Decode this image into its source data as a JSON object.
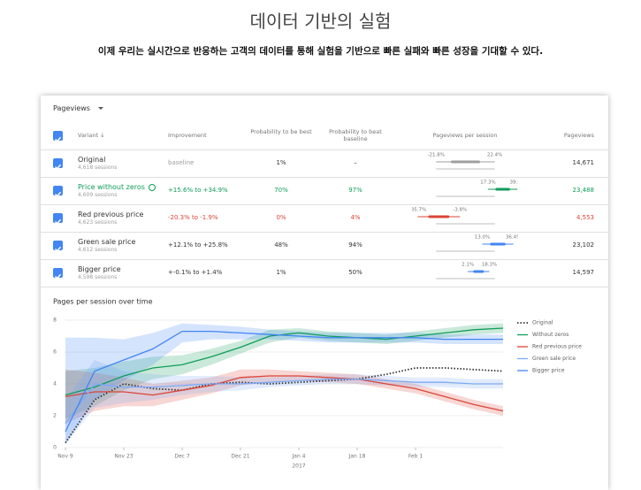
{
  "header": {
    "title": "데이터 기반의 실험",
    "subtitle": "이제 우리는 실시간으로 반응하는 고객의 데이터를 통해 실험을 기반으로 빠른 실패와 빠른 성장을 기대할 수 있다."
  },
  "report": {
    "metric": "Pageviews",
    "columns": [
      "Variant ↓",
      "Improvement",
      "Probability to be best",
      "Probability to beat baseline",
      "Pageviews per session",
      "Pageviews"
    ],
    "rows": [
      {
        "variant": "Original",
        "sessions": "4,618 sessions",
        "improvement": "baseline",
        "prob_best": "1%",
        "prob_beat": "–",
        "range": {
          "low": {
            "value": -21.8,
            "label": "-21.8%"
          },
          "high": {
            "value": 22.4,
            "label": "22.4%"
          }
        },
        "pageviews": "14,671",
        "text_color": "#333333",
        "bar_color": "#9e9e9e"
      },
      {
        "variant": "Price without zeros",
        "sessions": "4,609 sessions",
        "improvement": "+15.6% to +34.9%",
        "prob_best": "70%",
        "prob_beat": "97%",
        "range": {
          "low": {
            "value": 17.3,
            "label": "17.3%"
          },
          "high": {
            "value": 39.5,
            "label": "39.5%"
          }
        },
        "pageviews": "23,488",
        "text_color": "#0f9d58",
        "bar_color": "#0f9d58",
        "leader": true
      },
      {
        "variant": "Red previous price",
        "sessions": "4,623 sessions",
        "improvement": "-20.3% to -1.9%",
        "prob_best": "0%",
        "prob_beat": "4%",
        "range": {
          "low": {
            "value": -35.7,
            "label": "-35.7%"
          },
          "high": {
            "value": -3.8,
            "label": "-3.8%"
          }
        },
        "pageviews": "4,553",
        "text_color": "#db4437",
        "bar_color": "#db4437"
      },
      {
        "variant": "Green sale price",
        "sessions": "4,612 sessions",
        "improvement": "+12.1% to +25.8%",
        "prob_best": "48%",
        "prob_beat": "94%",
        "range": {
          "low": {
            "value": 13.0,
            "label": "13.0%"
          },
          "high": {
            "value": 36.4,
            "label": "36.4%"
          }
        },
        "pageviews": "23,102",
        "text_color": "#333333",
        "bar_color": "#4285f4"
      },
      {
        "variant": "Bigger price",
        "sessions": "4,598 sessions",
        "improvement": "+-0.1% to +1.4%",
        "prob_best": "1%",
        "prob_beat": "50%",
        "range": {
          "low": {
            "value": 2.1,
            "label": "2.1%"
          },
          "high": {
            "value": 18.3,
            "label": "18.3%"
          }
        },
        "pageviews": "14,597",
        "text_color": "#333333",
        "bar_color": "#4285f4"
      }
    ]
  },
  "chart_data": {
    "type": "line",
    "title": "Pages per session over time",
    "categories": [
      "Nov 9",
      null,
      "Nov 23",
      null,
      "Dec 7",
      null,
      "Dec 21",
      null,
      "Jan 4",
      null,
      "Jan 18",
      null,
      "Feb 1",
      null,
      null,
      null
    ],
    "annotations": [
      {
        "text": "2017",
        "category_index": 8
      }
    ],
    "ylim": [
      0,
      8
    ],
    "yticks": [
      0,
      2,
      4,
      6,
      8
    ],
    "grid": true,
    "series": [
      {
        "name": "Original",
        "color": "#333333",
        "line_style": "dotted",
        "values": [
          0.3,
          3.0,
          4.0,
          3.7,
          3.6,
          4.0,
          4.1,
          4.0,
          4.1,
          4.2,
          4.3,
          4.6,
          5.0,
          5.0,
          4.9,
          4.8
        ]
      },
      {
        "name": "Without zeros",
        "color": "#0f9d58",
        "line_style": "solid",
        "values": [
          3.3,
          3.8,
          4.5,
          5.0,
          5.2,
          5.7,
          6.3,
          7.0,
          7.2,
          7.0,
          6.9,
          6.8,
          7.0,
          7.2,
          7.4,
          7.5
        ],
        "lower": [
          1.8,
          2.6,
          3.6,
          4.3,
          4.6,
          5.2,
          5.9,
          6.6,
          6.9,
          6.7,
          6.6,
          6.5,
          6.7,
          6.9,
          7.1,
          7.2
        ],
        "upper": [
          4.8,
          5.0,
          5.4,
          5.7,
          5.8,
          6.2,
          6.7,
          7.4,
          7.5,
          7.3,
          7.2,
          7.1,
          7.3,
          7.5,
          7.7,
          7.8
        ]
      },
      {
        "name": "Red previous price",
        "color": "#db4437",
        "line_style": "solid",
        "values": [
          3.2,
          3.5,
          3.5,
          3.3,
          3.6,
          3.9,
          4.4,
          4.5,
          4.5,
          4.4,
          4.3,
          4.0,
          3.7,
          3.2,
          2.7,
          2.3
        ],
        "lower": [
          1.5,
          2.3,
          2.6,
          2.6,
          3.0,
          3.4,
          3.9,
          4.1,
          4.2,
          4.1,
          4.0,
          3.7,
          3.4,
          2.9,
          2.4,
          2.0
        ],
        "upper": [
          4.9,
          4.7,
          4.4,
          4.0,
          4.2,
          4.4,
          4.9,
          4.9,
          4.8,
          4.7,
          4.6,
          4.3,
          4.0,
          3.5,
          3.0,
          2.6
        ]
      },
      {
        "name": "Green sale price",
        "color": "#7baaf7",
        "line_style": "solid",
        "values": [
          1.5,
          4.0,
          3.8,
          3.8,
          3.9,
          4.0,
          4.0,
          4.1,
          4.2,
          4.3,
          4.3,
          4.2,
          4.1,
          4.1,
          4.0,
          4.0
        ],
        "lower": [
          0.2,
          2.5,
          2.8,
          3.0,
          3.3,
          3.5,
          3.6,
          3.8,
          3.9,
          4.0,
          4.0,
          3.9,
          3.8,
          3.8,
          3.7,
          3.7
        ],
        "upper": [
          3.0,
          5.5,
          4.8,
          4.6,
          4.5,
          4.5,
          4.4,
          4.4,
          4.5,
          4.6,
          4.6,
          4.5,
          4.4,
          4.4,
          4.3,
          4.3
        ]
      },
      {
        "name": "Bigger price",
        "color": "#4285f4",
        "line_style": "solid",
        "values": [
          1.0,
          4.8,
          5.5,
          6.2,
          7.3,
          7.3,
          7.2,
          7.1,
          7.0,
          6.9,
          6.9,
          6.9,
          6.9,
          6.8,
          6.8,
          6.8
        ],
        "lower": [
          0.2,
          3.0,
          4.2,
          5.2,
          6.6,
          6.8,
          6.8,
          6.8,
          6.7,
          6.6,
          6.6,
          6.6,
          6.6,
          6.5,
          6.5,
          6.5
        ],
        "upper": [
          6.9,
          6.9,
          6.8,
          7.2,
          7.8,
          7.7,
          7.6,
          7.4,
          7.3,
          7.2,
          7.2,
          7.2,
          7.2,
          7.1,
          7.1,
          7.1
        ]
      }
    ]
  }
}
